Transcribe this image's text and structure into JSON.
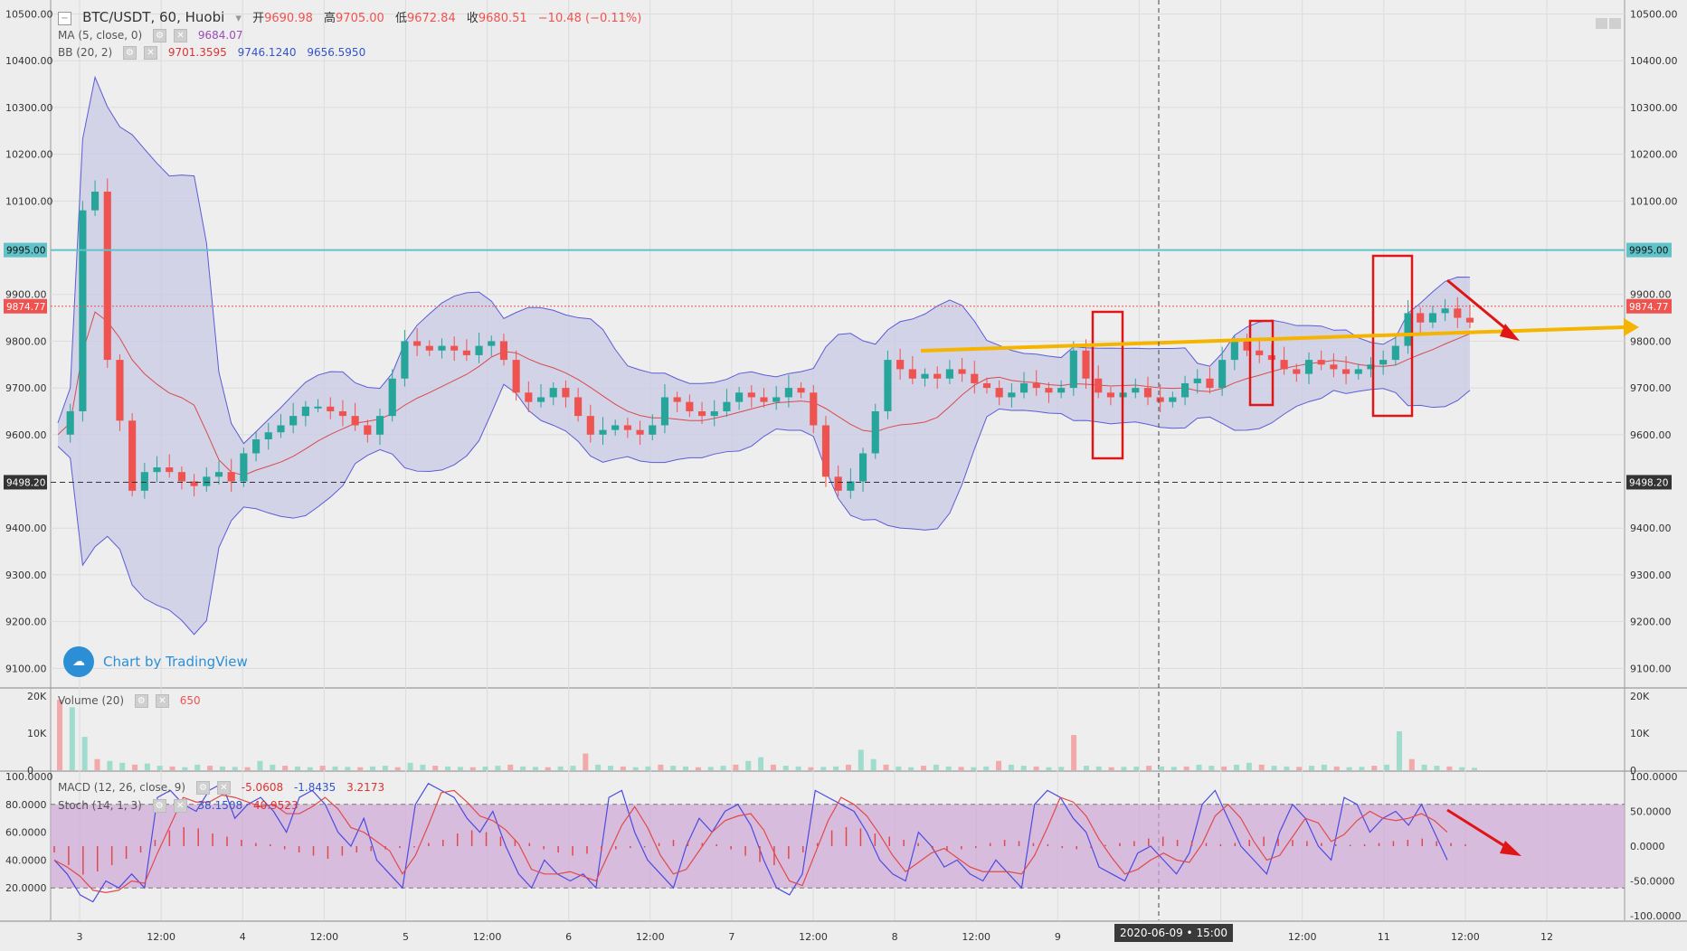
{
  "header": {
    "collapse_icon": "minus-box-icon",
    "symbol": "BTC/USDT, 60, Huobi",
    "open_label": "开",
    "open": "9690.98",
    "high_label": "高",
    "high": "9705.00",
    "low_label": "低",
    "low": "9672.84",
    "close_label": "收",
    "close": "9680.51",
    "change": "−10.48 (−0.11%)"
  },
  "indicators": {
    "ma": {
      "label": "MA (5, close, 0)",
      "value": "9684.07"
    },
    "bb": {
      "label": "BB (20, 2)",
      "v1": "9701.3595",
      "v2": "9746.1240",
      "v3": "9656.5950"
    },
    "volume": {
      "label": "Volume (20)",
      "value": "650"
    },
    "macd": {
      "label": "MACD (12, 26, close, 9)",
      "v1": "-5.0608",
      "v2": "-1.8435",
      "v3": "3.2173"
    },
    "stoch": {
      "label": "Stoch (14, 1, 3)",
      "v1": "38.1508",
      "v2": "40.9523"
    }
  },
  "watermark": {
    "text": "Chart by TradingView",
    "icon": "tradingview-cloud-icon"
  },
  "crosshair_time": "2020-06-09 • 15:00",
  "colors": {
    "up": "#26a69a",
    "down": "#ef5350",
    "band_fill": "#c9c9e6",
    "band_line": "#5c5cd6",
    "ma": "#d84b4b",
    "resistance": "#5fc3c9",
    "annotation_red": "#e01515",
    "arrow_yellow": "#f5b400",
    "stoch_fill": "#cfa6d6"
  },
  "chart_data": [
    {
      "type": "line",
      "title": "BTC/USDT, 60, Huobi",
      "x_tick_labels": [
        "3",
        "12:00",
        "4",
        "12:00",
        "5",
        "12:00",
        "6",
        "12:00",
        "7",
        "12:00",
        "8",
        "12:00",
        "9",
        "12:00",
        "10",
        "12:00",
        "11",
        "12:00",
        "12"
      ],
      "price_tick_labels": [
        "10500.00",
        "10400.00",
        "10300.00",
        "10200.00",
        "10100.00",
        "9900.00",
        "9800.00",
        "9700.00",
        "9600.00",
        "9400.00",
        "9300.00",
        "9200.00",
        "9100.00"
      ],
      "right_tick_labels": [
        "10500.00",
        "10400.00",
        "10300.00",
        "10200.00",
        "10100.00",
        "9900.00",
        "9800.00",
        "9700.00",
        "9600.00",
        "9400.00",
        "9300.00",
        "9200.00",
        "9100.00"
      ],
      "ylim": [
        9060,
        10530
      ],
      "horizontal_lines": [
        {
          "label": "9995.00",
          "value": 9995,
          "style": "solid"
        },
        {
          "label": "9874.77",
          "value": 9874.77,
          "style": "dotted"
        },
        {
          "label": "9498.20",
          "value": 9498.2,
          "style": "dashed"
        }
      ],
      "price_path": [
        9600,
        9650,
        10080,
        10120,
        9760,
        9630,
        9480,
        9520,
        9530,
        9520,
        9500,
        9490,
        9510,
        9520,
        9500,
        9560,
        9590,
        9605,
        9620,
        9640,
        9660,
        9660,
        9650,
        9640,
        9620,
        9600,
        9640,
        9720,
        9800,
        9790,
        9780,
        9790,
        9780,
        9770,
        9790,
        9800,
        9760,
        9690,
        9670,
        9680,
        9700,
        9680,
        9640,
        9600,
        9610,
        9620,
        9610,
        9600,
        9620,
        9680,
        9670,
        9650,
        9640,
        9650,
        9670,
        9690,
        9680,
        9670,
        9680,
        9700,
        9690,
        9620,
        9510,
        9480,
        9500,
        9560,
        9650,
        9760,
        9740,
        9720,
        9730,
        9720,
        9740,
        9730,
        9710,
        9700,
        9680,
        9690,
        9710,
        9700,
        9690,
        9700,
        9780,
        9720,
        9690,
        9680,
        9690,
        9700,
        9680,
        9670,
        9680,
        9710,
        9720,
        9700,
        9760,
        9800,
        9780,
        9770,
        9760,
        9740,
        9730,
        9760,
        9750,
        9740,
        9730,
        9740,
        9750,
        9760,
        9790,
        9860,
        9840,
        9860,
        9870,
        9850,
        9840
      ]
    },
    {
      "type": "bar",
      "title": "Volume (20)",
      "tick_labels": [
        "20K",
        "10K",
        "0"
      ],
      "ylim": [
        0,
        20000
      ],
      "values": [
        19000,
        17000,
        9000,
        3000,
        2500,
        2000,
        1500,
        1800,
        1200,
        1000,
        800,
        1500,
        1200,
        1000,
        900,
        800,
        2500,
        1500,
        1200,
        1000,
        800,
        1200,
        1000,
        900,
        800,
        1000,
        1200,
        800,
        2000,
        1500,
        1200,
        1000,
        900,
        800,
        1000,
        1200,
        1500,
        1000,
        900,
        800,
        1000,
        1200,
        4500,
        1500,
        1200,
        1000,
        800,
        1000,
        1500,
        1200,
        1000,
        800,
        900,
        1200,
        1500,
        2500,
        3500,
        1500,
        1200,
        1000,
        800,
        900,
        1000,
        1500,
        5500,
        3000,
        1500,
        1000,
        800,
        1200,
        1500,
        1000,
        900,
        800,
        1000,
        2500,
        1500,
        1200,
        1000,
        800,
        900,
        9500,
        1200,
        1000,
        800,
        900,
        1000,
        1200,
        1000,
        900,
        1000,
        1500,
        1200,
        1000,
        1500,
        2000,
        1500,
        1200,
        1000,
        900,
        1200,
        1500,
        1000,
        800,
        900,
        1200,
        1500,
        10500,
        3000,
        1500,
        1200,
        1000,
        800,
        650
      ]
    },
    {
      "type": "line",
      "title": "MACD (12, 26, close, 9) / Stoch (14, 1, 3)",
      "left_tick_labels": [
        "100.0000",
        "80.0000",
        "60.0000",
        "40.0000",
        "20.0000"
      ],
      "right_tick_labels": [
        "100.0000",
        "50.0000",
        "0.0000",
        "-50.0000",
        "-100.0000"
      ],
      "stoch_bands": [
        20,
        80
      ],
      "stoch_k": [
        40,
        30,
        15,
        10,
        25,
        20,
        30,
        20,
        85,
        90,
        80,
        75,
        90,
        95,
        70,
        80,
        85,
        75,
        60,
        85,
        90,
        80,
        60,
        50,
        70,
        40,
        30,
        20,
        80,
        95,
        90,
        85,
        70,
        60,
        75,
        50,
        30,
        20,
        40,
        30,
        25,
        30,
        20,
        85,
        90,
        60,
        40,
        30,
        20,
        50,
        70,
        60,
        75,
        80,
        65,
        40,
        20,
        15,
        30,
        90,
        85,
        80,
        75,
        60,
        40,
        30,
        25,
        60,
        50,
        35,
        40,
        30,
        25,
        40,
        30,
        20,
        80,
        90,
        85,
        70,
        60,
        35,
        30,
        25,
        45,
        50,
        40,
        30,
        45,
        80,
        90,
        70,
        50,
        40,
        30,
        60,
        80,
        70,
        50,
        40,
        85,
        80,
        60,
        70,
        75,
        65,
        80,
        60,
        40
      ],
      "macd_hist": [
        -10,
        -30,
        -45,
        -40,
        -30,
        -20,
        -10,
        10,
        25,
        30,
        28,
        20,
        15,
        10,
        5,
        3,
        -5,
        -10,
        -15,
        -20,
        -15,
        -10,
        -8,
        -5,
        -3,
        -2,
        5,
        10,
        20,
        25,
        22,
        15,
        10,
        5,
        -5,
        -10,
        -15,
        -12,
        -8,
        -5,
        -3,
        -2,
        5,
        10,
        8,
        5,
        3,
        -5,
        -15,
        -25,
        -30,
        -20,
        -10,
        5,
        25,
        30,
        28,
        20,
        15,
        10,
        5,
        -5,
        -8,
        -5,
        -3,
        5,
        10,
        8,
        5,
        3,
        -3,
        -5,
        -3,
        2,
        5,
        8,
        12,
        15,
        10,
        8,
        5,
        3,
        5,
        10,
        15,
        12,
        10,
        8,
        5,
        3,
        2,
        3,
        5,
        8,
        10,
        12,
        8,
        5,
        3
      ]
    }
  ]
}
